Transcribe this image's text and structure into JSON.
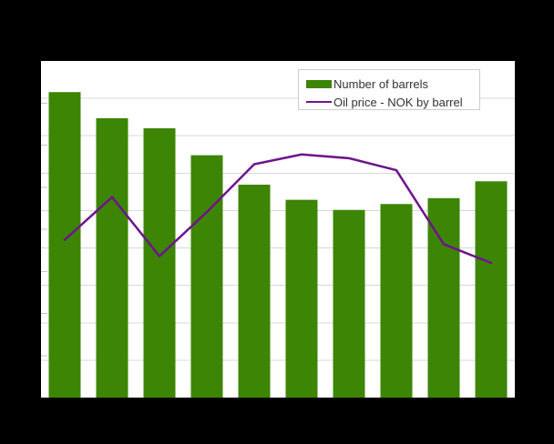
{
  "chart_data": {
    "type": "bar",
    "title": "",
    "xlabel": "",
    "ylabel": "",
    "grid": true,
    "legend_position": "top-right",
    "categories": [
      "",
      "",
      "",
      "",
      "",
      "",
      "",
      "",
      "",
      ""
    ],
    "series": [
      {
        "name": "Number of barrels",
        "render": "bar",
        "axis": "left",
        "color": "#3d8505",
        "values": [
          36.3,
          33.2,
          32.0,
          28.8,
          25.3,
          23.5,
          22.3,
          23.0,
          23.7,
          25.7
        ]
      },
      {
        "name": "Oil price - NOK by barrel",
        "render": "line",
        "axis": "right",
        "color": "#6e148c",
        "values": [
          211,
          268,
          189,
          248,
          312,
          325,
          320,
          304,
          205,
          180
        ]
      }
    ],
    "left_axis": {
      "min": 0,
      "max": 40,
      "tick_step": 5,
      "tick_labels_visible": false
    },
    "right_axis": {
      "min": 0,
      "max": 450,
      "grid_step": 50,
      "tick_labels_visible": false
    }
  },
  "legend": {
    "items": [
      {
        "label": "Number of barrels"
      },
      {
        "label": "Oil price - NOK by barrel"
      }
    ]
  },
  "colors": {
    "page_background": "#000000",
    "plot_background": "#ffffff",
    "gridline": "#d8d8d8",
    "tick": "#c6c6c6",
    "legend_border": "#cccccc",
    "legend_text": "#333333",
    "bar_green": "#3d8505",
    "line_purple": "#6e148c"
  }
}
